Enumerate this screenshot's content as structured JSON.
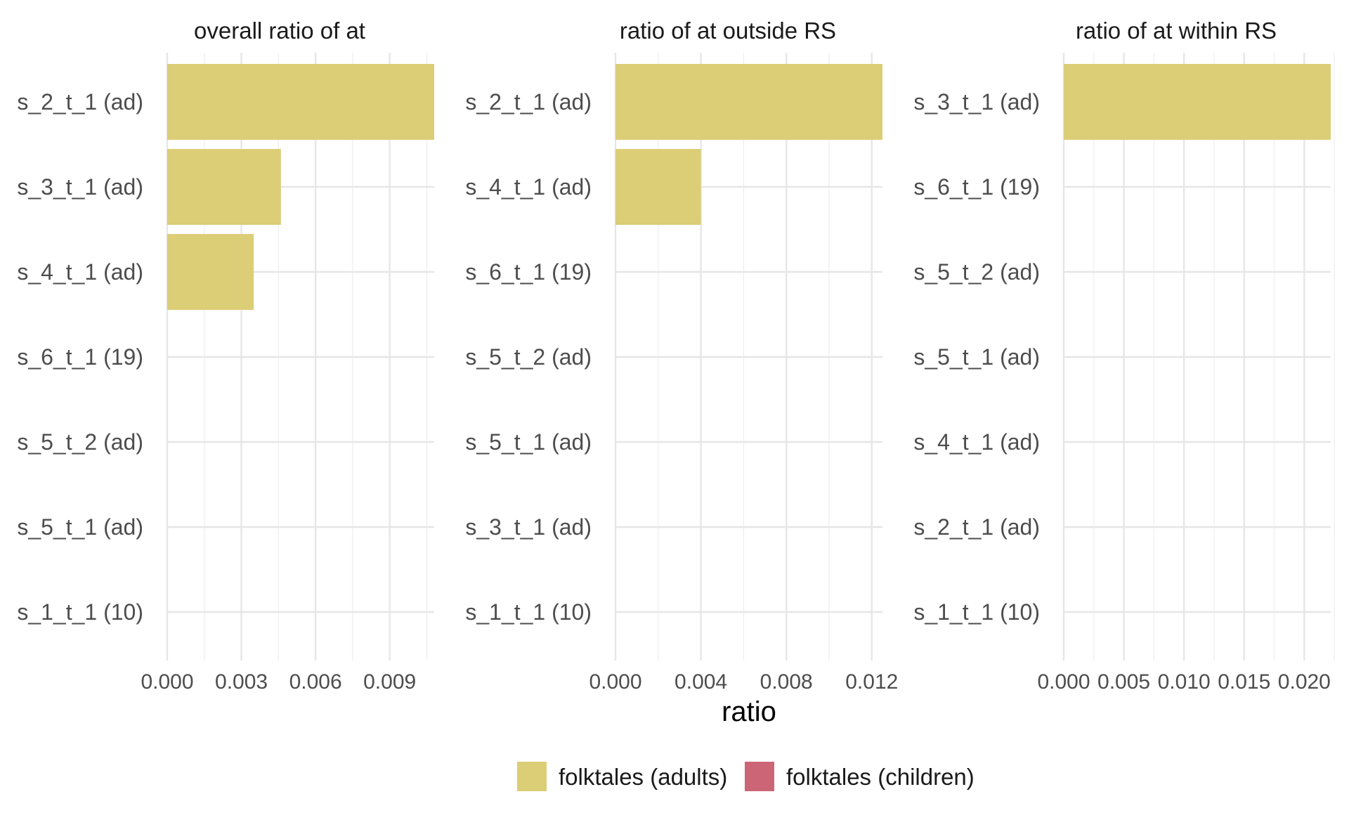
{
  "chart_data": {
    "type": "bar",
    "orientation": "horizontal",
    "xlabel": "ratio",
    "legend": {
      "placement": "bottom",
      "entries": [
        {
          "name": "folktales (adults)",
          "color": "#DCCD77"
        },
        {
          "name": "folktales (children)",
          "color": "#CC6677"
        }
      ]
    },
    "grid": true,
    "panels": [
      {
        "title": "overall ratio of at",
        "categories": [
          "s_2_t_1 (ad)",
          "s_3_t_1 (ad)",
          "s_4_t_1 (ad)",
          "s_6_t_1 (19)",
          "s_5_t_2 (ad)",
          "s_5_t_1 (ad)",
          "s_1_t_1 (10)"
        ],
        "series": [
          {
            "name": "folktales (adults)",
            "values": [
              0.0108,
              0.0046,
              0.0035,
              0,
              0,
              0,
              0
            ]
          }
        ],
        "xlim": [
          0,
          0.0108
        ],
        "xticks": [
          0,
          0.003,
          0.006,
          0.009
        ],
        "xtick_labels": [
          "0.000",
          "0.003",
          "0.006",
          "0.009"
        ]
      },
      {
        "title": "ratio of at outside RS",
        "categories": [
          "s_2_t_1 (ad)",
          "s_4_t_1 (ad)",
          "s_6_t_1 (19)",
          "s_5_t_2 (ad)",
          "s_5_t_1 (ad)",
          "s_3_t_1 (ad)",
          "s_1_t_1 (10)"
        ],
        "series": [
          {
            "name": "folktales (adults)",
            "values": [
              0.0125,
              0.004,
              0,
              0,
              0,
              0,
              0
            ]
          }
        ],
        "xlim": [
          0,
          0.0125
        ],
        "xticks": [
          0,
          0.004,
          0.008,
          0.012
        ],
        "xtick_labels": [
          "0.000",
          "0.004",
          "0.008",
          "0.012"
        ]
      },
      {
        "title": "ratio of at within RS",
        "categories": [
          "s_3_t_1 (ad)",
          "s_6_t_1 (19)",
          "s_5_t_2 (ad)",
          "s_5_t_1 (ad)",
          "s_4_t_1 (ad)",
          "s_2_t_1 (ad)",
          "s_1_t_1 (10)"
        ],
        "series": [
          {
            "name": "folktales (adults)",
            "values": [
              0.0222,
              0,
              0,
              0,
              0,
              0,
              0
            ]
          }
        ],
        "xlim": [
          0,
          0.0222
        ],
        "xticks": [
          0,
          0.005,
          0.01,
          0.015,
          0.02
        ],
        "xtick_labels": [
          "0.000",
          "0.005",
          "0.010",
          "0.015",
          "0.020"
        ]
      }
    ]
  }
}
